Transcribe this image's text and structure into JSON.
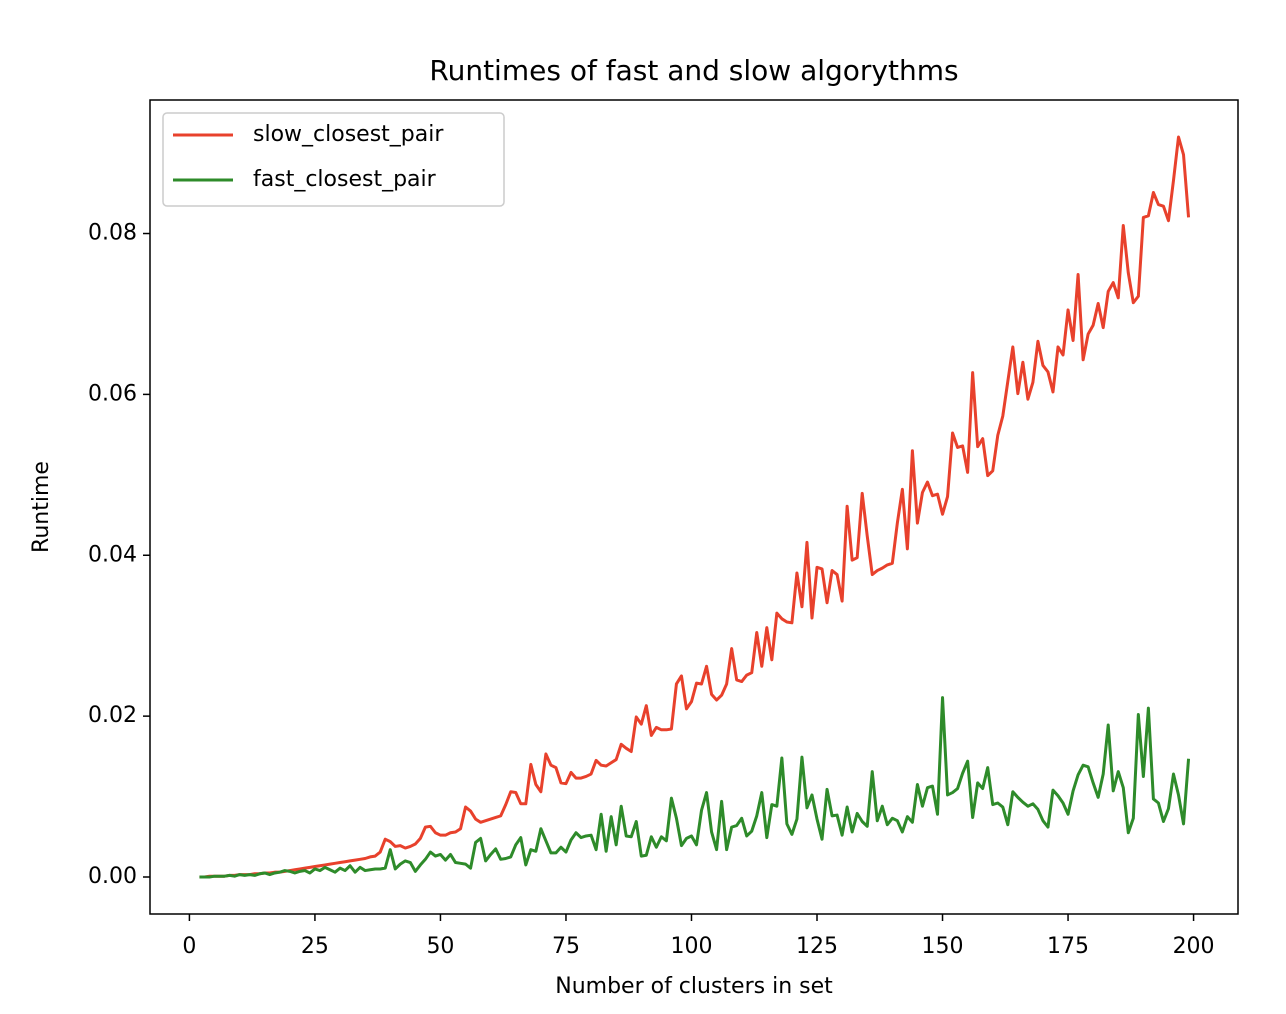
{
  "chart_data": {
    "type": "line",
    "title": "Runtimes of fast and slow algorythms",
    "x_label": "Number of clusters in set",
    "y_label": "Runtime",
    "x": [
      2,
      3,
      4,
      5,
      6,
      7,
      8,
      9,
      10,
      11,
      12,
      13,
      14,
      15,
      16,
      17,
      18,
      19,
      20,
      21,
      22,
      23,
      24,
      25,
      26,
      27,
      28,
      29,
      30,
      31,
      32,
      33,
      34,
      35,
      36,
      37,
      38,
      39,
      40,
      41,
      42,
      43,
      44,
      45,
      46,
      47,
      48,
      49,
      50,
      51,
      52,
      53,
      54,
      55,
      56,
      57,
      58,
      59,
      60,
      61,
      62,
      63,
      64,
      65,
      66,
      67,
      68,
      69,
      70,
      71,
      72,
      73,
      74,
      75,
      76,
      77,
      78,
      79,
      80,
      81,
      82,
      83,
      84,
      85,
      86,
      87,
      88,
      89,
      90,
      91,
      92,
      93,
      94,
      95,
      96,
      97,
      98,
      99,
      100,
      101,
      102,
      103,
      104,
      105,
      106,
      107,
      108,
      109,
      110,
      111,
      112,
      113,
      114,
      115,
      116,
      117,
      118,
      119,
      120,
      121,
      122,
      123,
      124,
      125,
      126,
      127,
      128,
      129,
      130,
      131,
      132,
      133,
      134,
      135,
      136,
      137,
      138,
      139,
      140,
      141,
      142,
      143,
      144,
      145,
      146,
      147,
      148,
      149,
      150,
      151,
      152,
      153,
      154,
      155,
      156,
      157,
      158,
      159,
      160,
      161,
      162,
      163,
      164,
      165,
      166,
      167,
      168,
      169,
      170,
      171,
      172,
      173,
      174,
      175,
      176,
      177,
      178,
      179,
      180,
      181,
      182,
      183,
      184,
      185,
      186,
      187,
      188,
      189,
      190,
      191,
      192,
      193,
      194,
      195,
      196,
      197,
      198,
      199
    ],
    "series": [
      {
        "name": "slow_closest_pair",
        "color": "#e8412c",
        "values": [
          0,
          0,
          0.0001,
          0.0001,
          0.0001,
          0.0001,
          0.0002,
          0.0002,
          0.0003,
          0.0003,
          0.0003,
          0.0004,
          0.0004,
          0.0005,
          0.0005,
          0.0006,
          0.0006,
          0.0007,
          0.0008,
          0.0009,
          0.001,
          0.0011,
          0.0012,
          0.0013,
          0.0014,
          0.0015,
          0.0016,
          0.0017,
          0.0018,
          0.0019,
          0.002,
          0.0021,
          0.0022,
          0.0023,
          0.0025,
          0.0026,
          0.0031,
          0.0047,
          0.0044,
          0.0038,
          0.0039,
          0.0036,
          0.0038,
          0.0041,
          0.0048,
          0.0062,
          0.0063,
          0.0055,
          0.0052,
          0.0052,
          0.0055,
          0.0056,
          0.006,
          0.0087,
          0.0082,
          0.0072,
          0.0068,
          0.007,
          0.0072,
          0.0074,
          0.0076,
          0.009,
          0.0106,
          0.0105,
          0.0091,
          0.0091,
          0.014,
          0.0115,
          0.0106,
          0.0153,
          0.0139,
          0.0136,
          0.0117,
          0.0116,
          0.013,
          0.0123,
          0.0123,
          0.0125,
          0.0128,
          0.0145,
          0.0139,
          0.0138,
          0.0142,
          0.0146,
          0.0165,
          0.016,
          0.0156,
          0.0199,
          0.019,
          0.0213,
          0.0176,
          0.0186,
          0.0183,
          0.0183,
          0.0184,
          0.024,
          0.025,
          0.0209,
          0.0218,
          0.0241,
          0.024,
          0.0262,
          0.0227,
          0.022,
          0.0226,
          0.024,
          0.0284,
          0.0245,
          0.0243,
          0.0251,
          0.0254,
          0.0304,
          0.0262,
          0.031,
          0.027,
          0.0328,
          0.0321,
          0.0317,
          0.0316,
          0.0378,
          0.0336,
          0.0416,
          0.0322,
          0.0385,
          0.0383,
          0.0341,
          0.0381,
          0.0376,
          0.0343,
          0.0461,
          0.0394,
          0.0397,
          0.0477,
          0.0424,
          0.0376,
          0.0381,
          0.0384,
          0.0388,
          0.039,
          0.044,
          0.0482,
          0.0408,
          0.053,
          0.044,
          0.0478,
          0.0491,
          0.0474,
          0.0476,
          0.0451,
          0.0473,
          0.0552,
          0.0534,
          0.0536,
          0.0503,
          0.0627,
          0.0535,
          0.0545,
          0.0499,
          0.0505,
          0.0549,
          0.0573,
          0.0616,
          0.0659,
          0.0601,
          0.064,
          0.0594,
          0.0615,
          0.0666,
          0.0636,
          0.0628,
          0.0603,
          0.0659,
          0.0649,
          0.0705,
          0.0667,
          0.0749,
          0.0643,
          0.0675,
          0.0686,
          0.0713,
          0.0683,
          0.0728,
          0.0739,
          0.072,
          0.081,
          0.0751,
          0.0714,
          0.0722,
          0.082,
          0.0822,
          0.0851,
          0.0836,
          0.0834,
          0.0816,
          0.0866,
          0.092,
          0.0898,
          0.082
        ]
      },
      {
        "name": "fast_closest_pair",
        "color": "#2e8b2a",
        "values": [
          0,
          0,
          0,
          0.0001,
          0.0001,
          0.0001,
          0.0002,
          0.0001,
          0.0003,
          0.0002,
          0.0003,
          0.0002,
          0.0004,
          0.0005,
          0.0003,
          0.0005,
          0.0006,
          0.0008,
          0.0007,
          0.0005,
          0.0007,
          0.0008,
          0.0005,
          0.001,
          0.0008,
          0.0012,
          0.0009,
          0.0006,
          0.0011,
          0.0008,
          0.0014,
          0.0006,
          0.0012,
          0.0008,
          0.0009,
          0.001,
          0.001,
          0.0011,
          0.0034,
          0.001,
          0.0016,
          0.002,
          0.0018,
          0.0007,
          0.0015,
          0.0022,
          0.0031,
          0.0026,
          0.0028,
          0.0021,
          0.0028,
          0.0018,
          0.0017,
          0.0016,
          0.0011,
          0.0043,
          0.0048,
          0.002,
          0.0028,
          0.0035,
          0.0022,
          0.0023,
          0.0025,
          0.004,
          0.0049,
          0.0015,
          0.0034,
          0.0032,
          0.006,
          0.0045,
          0.003,
          0.003,
          0.0037,
          0.0031,
          0.0046,
          0.0055,
          0.0049,
          0.0051,
          0.0052,
          0.0034,
          0.0078,
          0.0032,
          0.0075,
          0.004,
          0.0088,
          0.0051,
          0.005,
          0.0069,
          0.0026,
          0.0027,
          0.005,
          0.0037,
          0.005,
          0.0045,
          0.0098,
          0.0073,
          0.0039,
          0.0048,
          0.0051,
          0.004,
          0.0083,
          0.0105,
          0.0056,
          0.0034,
          0.0094,
          0.0034,
          0.0062,
          0.0064,
          0.0073,
          0.0051,
          0.0057,
          0.0076,
          0.0105,
          0.0049,
          0.009,
          0.0088,
          0.0148,
          0.0066,
          0.0053,
          0.0072,
          0.0149,
          0.0086,
          0.0102,
          0.0072,
          0.0047,
          0.0109,
          0.0076,
          0.0077,
          0.0052,
          0.0087,
          0.0056,
          0.0079,
          0.0069,
          0.0063,
          0.0131,
          0.007,
          0.0088,
          0.0065,
          0.0073,
          0.007,
          0.0056,
          0.0075,
          0.0068,
          0.0115,
          0.0088,
          0.0111,
          0.0113,
          0.0078,
          0.0223,
          0.0102,
          0.0105,
          0.011,
          0.0129,
          0.0144,
          0.0074,
          0.0117,
          0.011,
          0.0136,
          0.009,
          0.0092,
          0.0087,
          0.0065,
          0.0106,
          0.0099,
          0.0093,
          0.0088,
          0.0091,
          0.0084,
          0.007,
          0.0062,
          0.0108,
          0.0101,
          0.0092,
          0.0078,
          0.0107,
          0.0127,
          0.0139,
          0.0137,
          0.0117,
          0.0099,
          0.0128,
          0.0189,
          0.0107,
          0.0131,
          0.0111,
          0.0055,
          0.0073,
          0.0202,
          0.0125,
          0.021,
          0.0097,
          0.0092,
          0.0069,
          0.0085,
          0.0128,
          0.0102,
          0.0066,
          0.0147
        ]
      }
    ],
    "xlim": [
      -7.85,
      208.85
    ],
    "xticks": [
      0,
      25,
      50,
      75,
      100,
      125,
      150,
      175,
      200
    ],
    "ylim": [
      -0.0046,
      0.0966
    ],
    "yticks": [
      {
        "value": 0,
        "label": "0.00"
      },
      0.02,
      0.04,
      0.06,
      0.08
    ],
    "grid": false,
    "legend": "upper-left"
  }
}
